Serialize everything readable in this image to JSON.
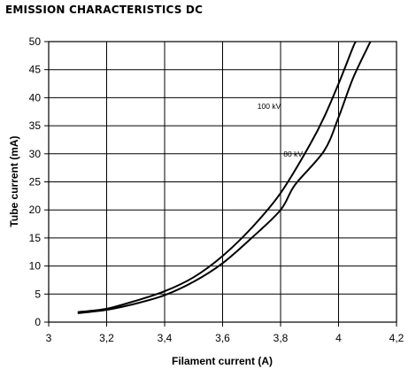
{
  "chart_data": {
    "type": "line",
    "title": "EMISSION CHARACTERISTICS DC",
    "xlabel": "Filament current (A)",
    "ylabel": "Tube current (mA)",
    "xlim": [
      3,
      4.2
    ],
    "ylim": [
      0,
      50
    ],
    "x_ticks": [
      "3",
      "3,2",
      "3,4",
      "3,6",
      "3,8",
      "4",
      "4,2"
    ],
    "y_ticks": [
      "0",
      "5",
      "10",
      "15",
      "20",
      "25",
      "30",
      "35",
      "40",
      "45",
      "50"
    ],
    "grid": true,
    "series": [
      {
        "name": "100 kV",
        "points": [
          [
            3.1,
            1.8
          ],
          [
            3.2,
            2.4
          ],
          [
            3.3,
            3.8
          ],
          [
            3.4,
            5.5
          ],
          [
            3.5,
            8.0
          ],
          [
            3.6,
            11.8
          ],
          [
            3.7,
            16.8
          ],
          [
            3.8,
            23.0
          ],
          [
            3.9,
            31.5
          ],
          [
            3.95,
            36.5
          ],
          [
            4.0,
            42.5
          ],
          [
            4.05,
            49.0
          ],
          [
            4.06,
            50.0
          ]
        ]
      },
      {
        "name": "80 kV",
        "points": [
          [
            3.1,
            1.6
          ],
          [
            3.2,
            2.2
          ],
          [
            3.3,
            3.3
          ],
          [
            3.4,
            4.8
          ],
          [
            3.5,
            7.2
          ],
          [
            3.6,
            10.5
          ],
          [
            3.7,
            15.0
          ],
          [
            3.8,
            20.0
          ],
          [
            3.85,
            24.5
          ],
          [
            3.95,
            30.5
          ],
          [
            4.0,
            36.5
          ],
          [
            4.05,
            43.5
          ],
          [
            4.11,
            50.0
          ]
        ]
      }
    ]
  }
}
